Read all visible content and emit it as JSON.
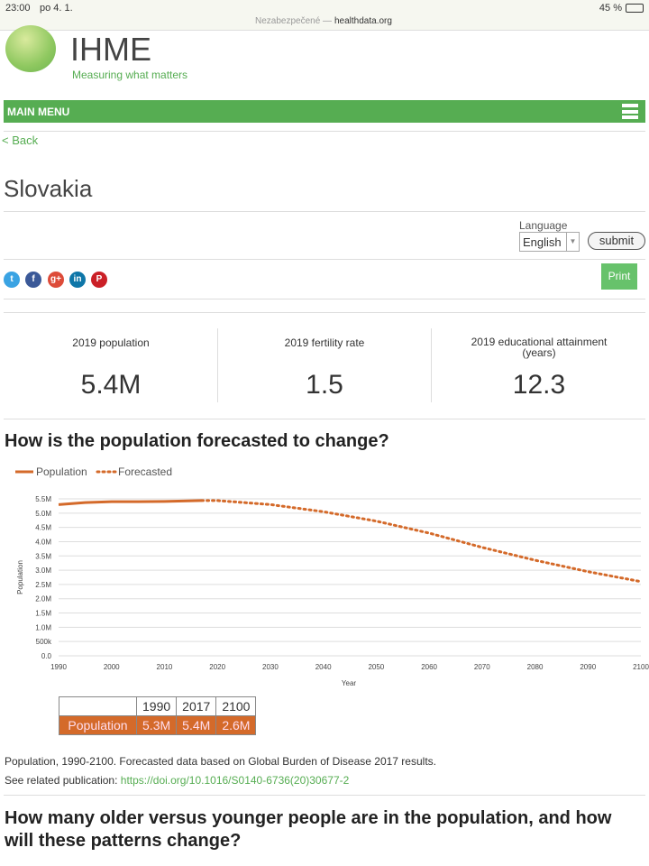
{
  "status": {
    "time": "23:00",
    "date": "po 4. 1.",
    "battery": "45 %",
    "security": "Nezabezpečené —",
    "domain": "healthdata.org"
  },
  "logo": {
    "name": "IHME",
    "tagline": "Measuring what matters"
  },
  "menu": {
    "label": "MAIN MENU"
  },
  "back": "< Back",
  "title": "Slovakia",
  "language": {
    "label": "Language",
    "value": "English",
    "submit": "submit"
  },
  "print": "Print",
  "social": [
    "t",
    "f",
    "g+",
    "in",
    "P"
  ],
  "stats": [
    {
      "label": "2019 population",
      "value": "5.4M"
    },
    {
      "label": "2019 fertility rate",
      "value": "1.5"
    },
    {
      "label": "2019 educational attainment (years)",
      "value": "12.3"
    }
  ],
  "section1": "How is the population forecasted to change?",
  "chart_data": {
    "type": "line",
    "xlabel": "Year",
    "ylabel": "Population",
    "xlim": [
      1990,
      2100
    ],
    "ylim": [
      0,
      5.5
    ],
    "legend": [
      "Population",
      "Forecasted"
    ],
    "xticks": [
      "1990",
      "2000",
      "2010",
      "2020",
      "2030",
      "2040",
      "2050",
      "2060",
      "2070",
      "2080",
      "2090",
      "2100"
    ],
    "yticks": [
      "0.0",
      "500k",
      "1.0M",
      "1.5M",
      "2.0M",
      "2.5M",
      "3.0M",
      "3.5M",
      "4.0M",
      "4.5M",
      "5.0M",
      "5.5M"
    ],
    "series": [
      {
        "name": "Population",
        "x": [
          1990,
          1995,
          2000,
          2005,
          2010,
          2017
        ],
        "values": [
          5.3,
          5.37,
          5.4,
          5.4,
          5.41,
          5.44
        ]
      },
      {
        "name": "Forecasted",
        "x": [
          2017,
          2020,
          2030,
          2040,
          2050,
          2060,
          2070,
          2080,
          2090,
          2100
        ],
        "values": [
          5.44,
          5.44,
          5.3,
          5.05,
          4.72,
          4.3,
          3.8,
          3.35,
          2.95,
          2.6
        ]
      }
    ]
  },
  "table": {
    "headers": [
      "1990",
      "2017",
      "2100"
    ],
    "row_label": "Population",
    "values": [
      "5.3M",
      "5.4M",
      "2.6M"
    ]
  },
  "caption": "Population, 1990-2100. Forecasted data based on Global Burden of Disease 2017 results.",
  "related": {
    "label": "See related publication:",
    "link": "https://doi.org/10.1016/S0140-6736(20)30677-2"
  },
  "section2": "How many older versus younger people are in the population, and how will these patterns change?"
}
